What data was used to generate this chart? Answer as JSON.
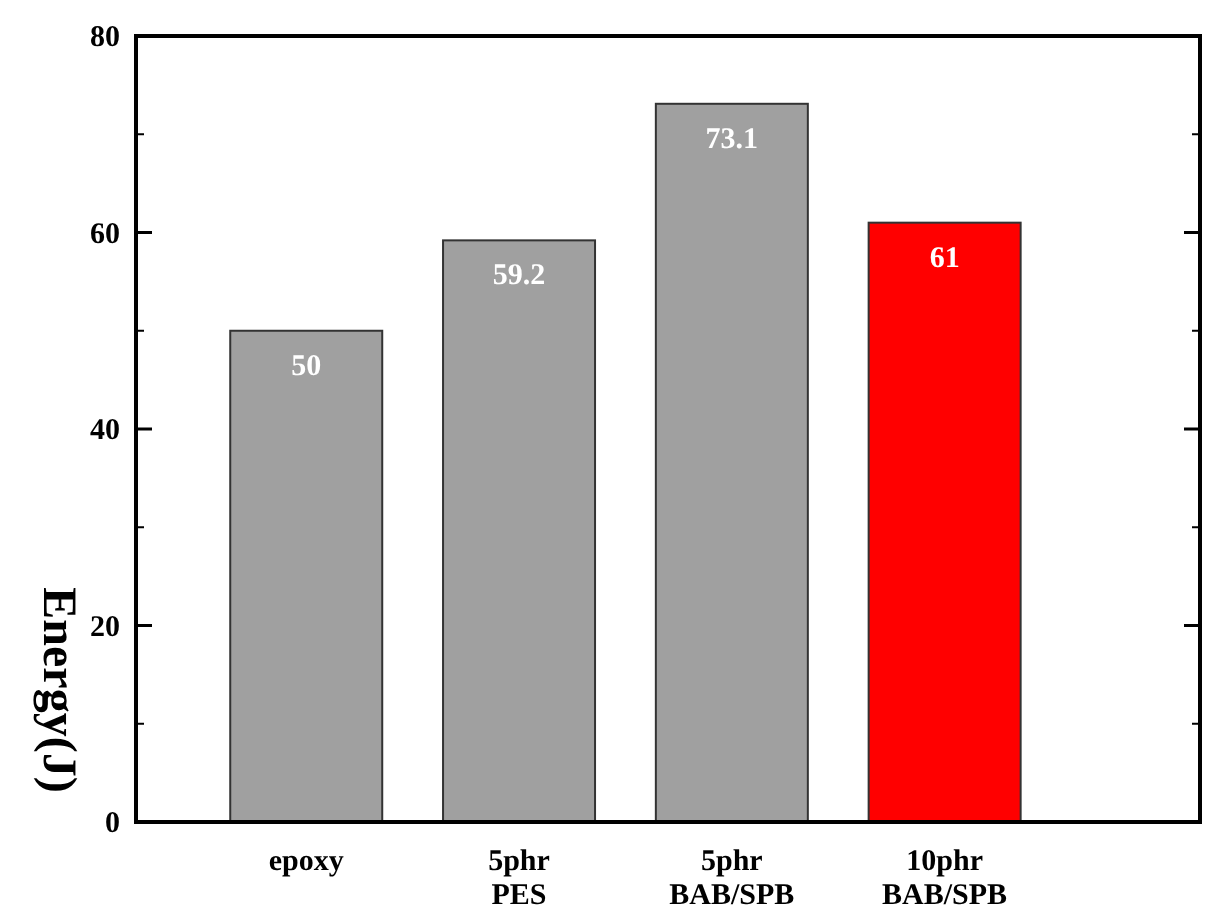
{
  "chart_data": {
    "type": "bar",
    "ylabel": "Energy(J)",
    "categories": [
      "epoxy",
      "5phr\nPES",
      "5phr\nBAB/SPB",
      "10phr\nBAB/SPB"
    ],
    "values": [
      50,
      59.2,
      73.1,
      61
    ],
    "colors": [
      "#a0a0a0",
      "#a0a0a0",
      "#a0a0a0",
      "#ff0000"
    ],
    "ylim": [
      0,
      80
    ],
    "yticks": [
      0,
      20,
      40,
      60,
      80
    ],
    "grid": false,
    "data_labels": true
  }
}
